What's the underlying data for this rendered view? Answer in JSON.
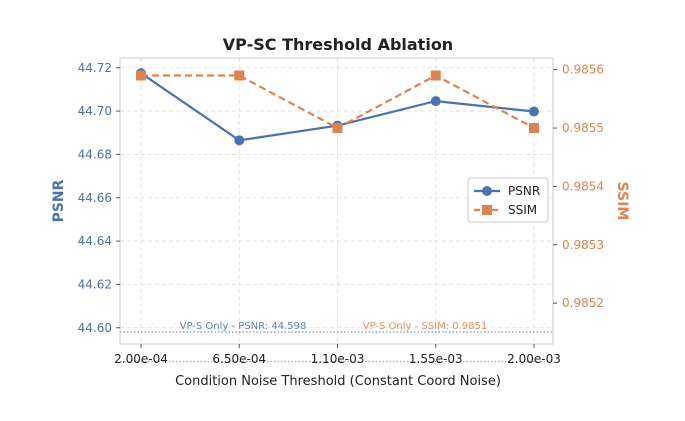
{
  "chart_data": {
    "type": "line",
    "title": "VP-SC Threshold Ablation",
    "xlabel": "Condition Noise Threshold (Constant Coord Noise)",
    "categories": [
      "2.00e-04",
      "6.50e-04",
      "1.10e-03",
      "1.55e-03",
      "2.00e-03"
    ],
    "left_axis": {
      "label": "PSNR",
      "color": "#4c72b0",
      "ylim": [
        44.5925,
        44.7245
      ],
      "ticks": [
        44.6,
        44.62,
        44.64,
        44.66,
        44.68,
        44.7,
        44.72
      ],
      "tick_labels": [
        "44.60",
        "44.62",
        "44.64",
        "44.66",
        "44.68",
        "44.70",
        "44.72"
      ]
    },
    "right_axis": {
      "label": "SSIM",
      "color": "#dd8452",
      "ylim": [
        0.98513,
        0.98562
      ],
      "ticks": [
        0.9852,
        0.9853,
        0.9854,
        0.9855,
        0.9856
      ],
      "tick_labels": [
        "0.9852",
        "0.9853",
        "0.9854",
        "0.9855",
        "0.9856"
      ]
    },
    "series": [
      {
        "name": "PSNR",
        "axis": "left",
        "color": "#4c72b0",
        "marker": "circle",
        "linestyle": "solid",
        "values": [
          44.7175,
          44.6865,
          44.6933,
          44.7046,
          44.6998
        ]
      },
      {
        "name": "SSIM",
        "axis": "right",
        "color": "#dd8452",
        "marker": "square",
        "linestyle": "dashed",
        "values": [
          0.98559,
          0.98559,
          0.9855,
          0.98559,
          0.9855
        ]
      }
    ],
    "reference_lines": [
      {
        "axis": "left",
        "value": 44.598,
        "color": "#4c72b0",
        "label": "VP-S Only - PSNR: 44.598"
      },
      {
        "axis": "right",
        "value": 0.9851,
        "color": "#dd8452",
        "label": "VP-S Only - SSIM: 0.9851"
      }
    ],
    "grid": true,
    "legend_position": "center-right"
  }
}
